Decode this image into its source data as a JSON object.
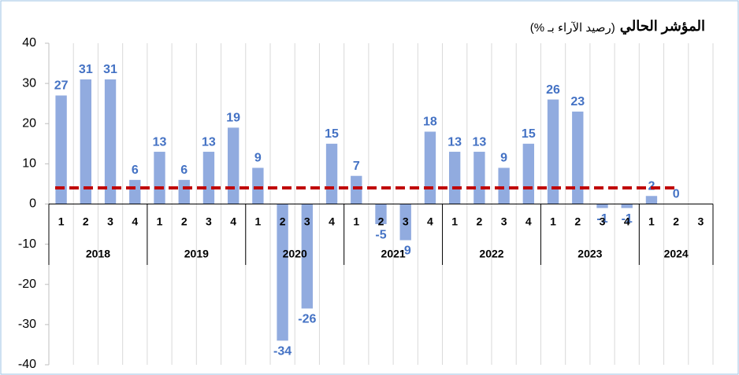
{
  "chart_data": {
    "type": "bar",
    "title": "المؤشر الحالي",
    "subtitle": "(رصيد الآراء بـ %)",
    "categories": [
      "1",
      "2",
      "3",
      "4",
      "1",
      "2",
      "3",
      "4",
      "1",
      "2",
      "3",
      "4",
      "1",
      "2",
      "3",
      "4",
      "1",
      "2",
      "3",
      "4",
      "1",
      "2",
      "3",
      "4",
      "1",
      "2",
      "3"
    ],
    "years": [
      "2018",
      "2019",
      "2020",
      "2021",
      "2022",
      "2023",
      "2024"
    ],
    "values": [
      27,
      31,
      31,
      6,
      13,
      6,
      13,
      19,
      9,
      -34,
      -26,
      15,
      7,
      -5,
      -9,
      18,
      13,
      13,
      9,
      15,
      26,
      23,
      -1,
      -1,
      2,
      0,
      null
    ],
    "color": "#91abdf",
    "label_color": "#4472c4",
    "reference_line": 4,
    "reference_color": "#c00000",
    "ylim": [
      -40,
      40
    ],
    "yticks": [
      -40,
      -30,
      -20,
      -10,
      0,
      10,
      20,
      30,
      40
    ],
    "grid": true
  }
}
